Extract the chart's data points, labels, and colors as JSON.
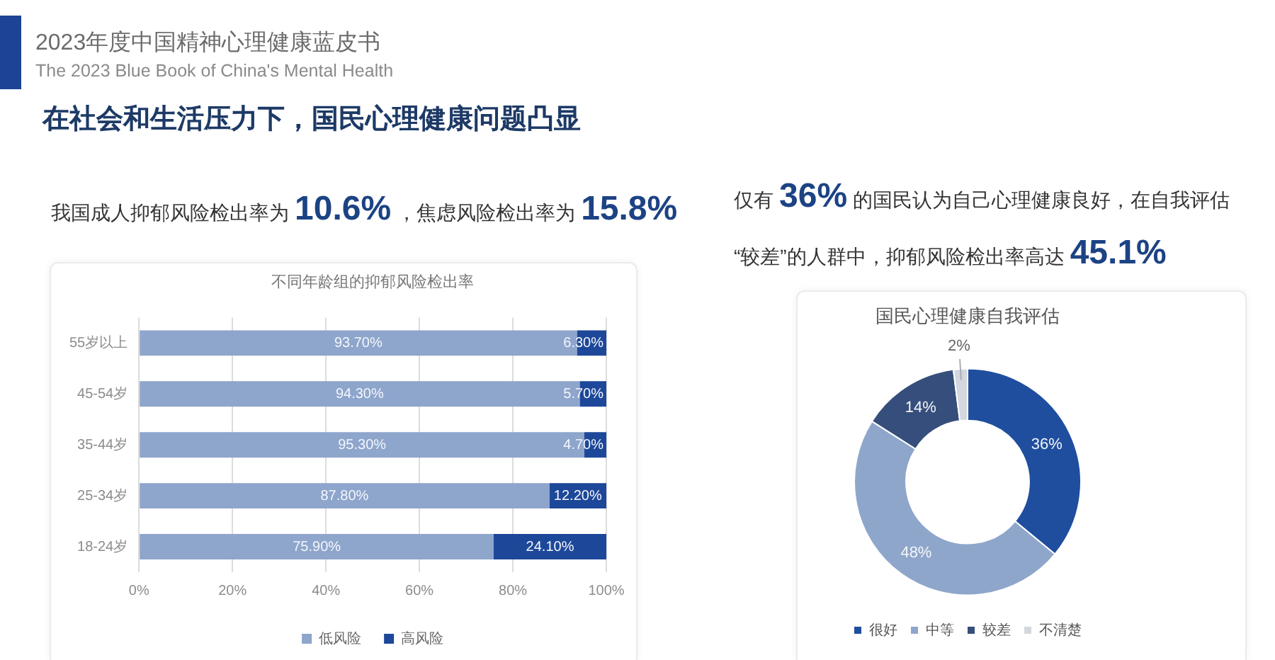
{
  "chart_data": [
    {
      "type": "other",
      "title": "2023年度中国精神心理健康蓝皮书",
      "subtitle": "The 2023 Blue Book of China's Mental Health",
      "annotations": [
        "在社会和生活压力下，国民心理健康问题凸显",
        "我国成人抑郁风险检出率为10.6%，焦虑风险检出率为15.8%",
        "仅有36%的国民认为自己心理健康良好，在自我评估“较差”的人群中，抑郁风险检出率高达45.1%"
      ]
    },
    {
      "type": "bar",
      "title": "不同年龄组的抑郁风险检出率",
      "orientation": "horizontal",
      "stacked": true,
      "categories": [
        "55岁以上",
        "45-54岁",
        "35-44岁",
        "25-34岁",
        "18-24岁"
      ],
      "series": [
        {
          "name": "低风险",
          "color": "#8ea5cc",
          "values": [
            93.7,
            94.3,
            95.3,
            87.8,
            75.9
          ],
          "value_labels": [
            "93.70%",
            "94.30%",
            "95.30%",
            "87.80%",
            "75.90%"
          ]
        },
        {
          "name": "高风险",
          "color": "#1d4799",
          "values": [
            6.3,
            5.7,
            4.7,
            12.2,
            24.1
          ],
          "value_labels": [
            "6.30%",
            "5.70%",
            "4.70%",
            "12.20%",
            "24.10%"
          ]
        }
      ],
      "xlim": [
        0,
        100
      ],
      "xticks": [
        {
          "value": 0,
          "label": "0%"
        },
        {
          "value": 20,
          "label": "20%"
        },
        {
          "value": 40,
          "label": "40%"
        },
        {
          "value": 60,
          "label": "60%"
        },
        {
          "value": 80,
          "label": "80%"
        },
        {
          "value": 100,
          "label": "100%"
        }
      ],
      "grid": "x",
      "legend": "bottom"
    },
    {
      "type": "donut",
      "title": "国民心理健康自我评估",
      "categories": [
        "很好",
        "中等",
        "较差",
        "不清楚"
      ],
      "values": [
        36,
        48,
        14,
        2
      ],
      "colors": [
        "#1f4e9f",
        "#8fa6cb",
        "#354e7b",
        "#d4d8de"
      ],
      "value_labels": [
        "36%",
        "48%",
        "14%",
        "2%"
      ],
      "legend": "bottom"
    }
  ]
}
